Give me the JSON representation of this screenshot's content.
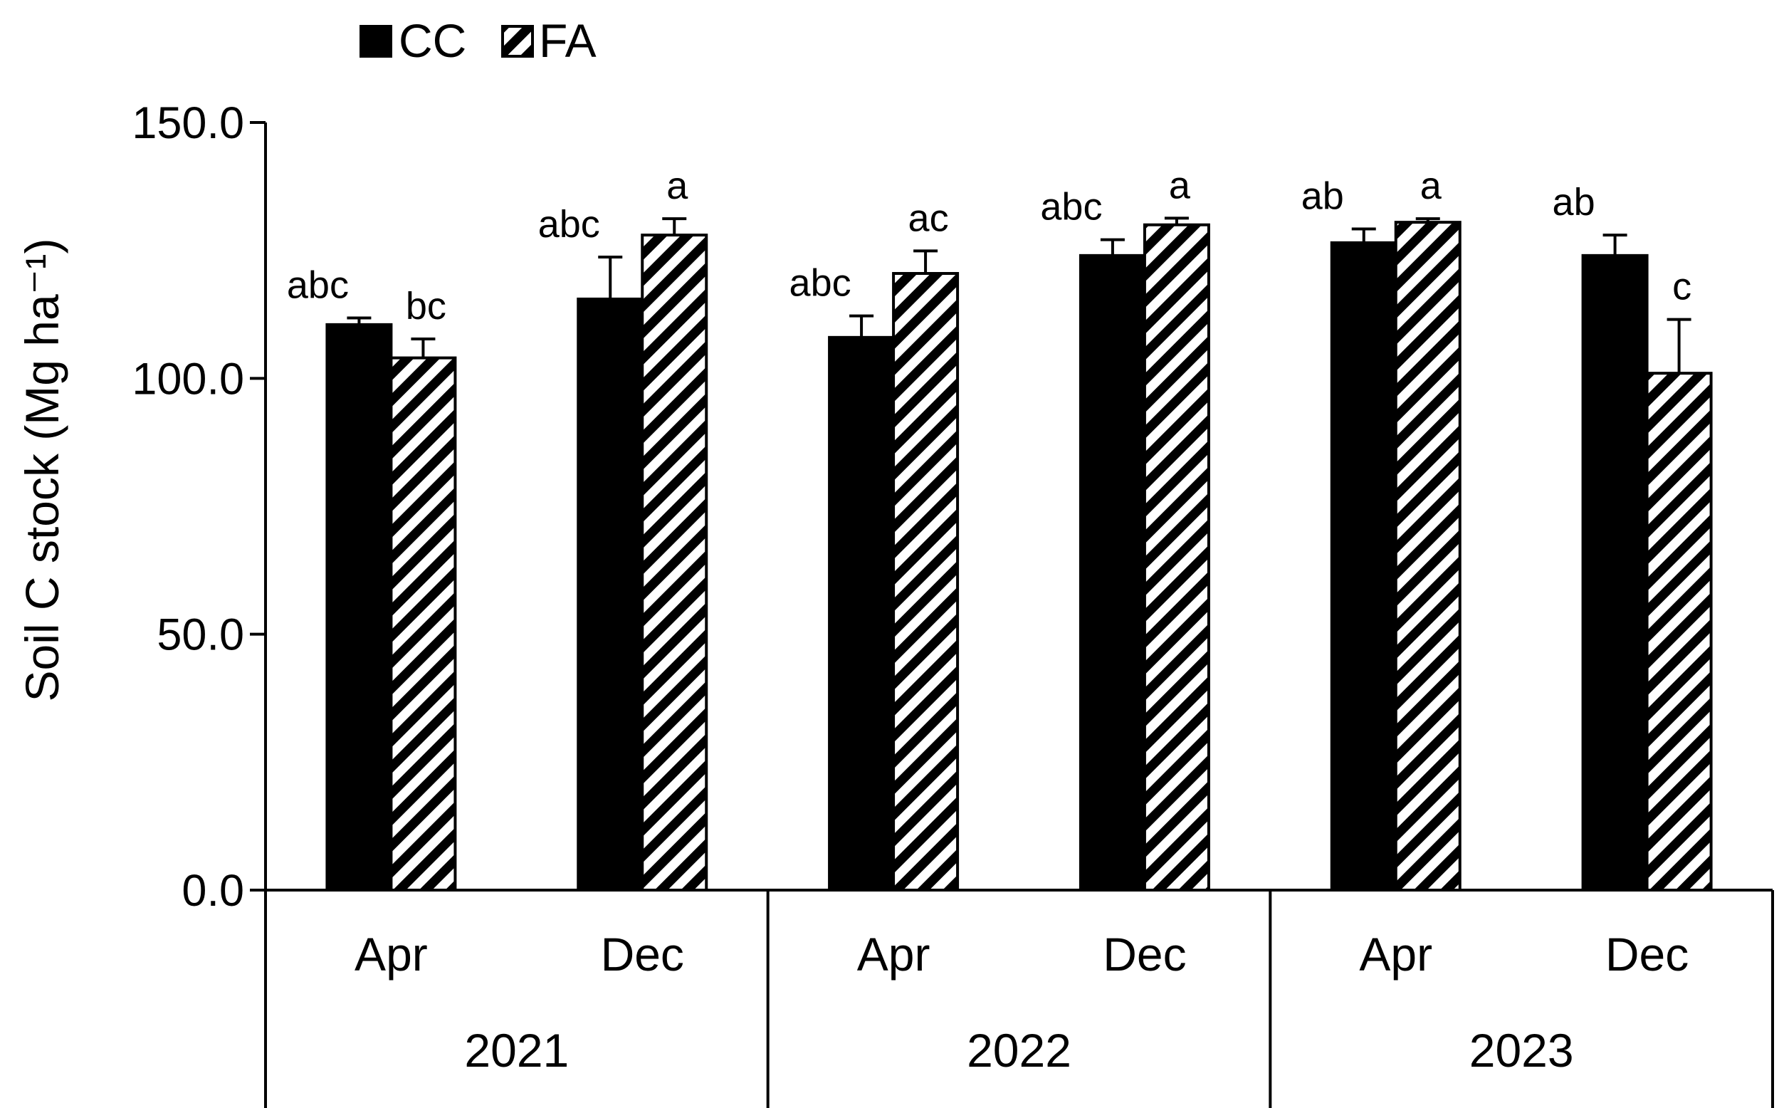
{
  "chart_data": {
    "type": "bar",
    "ylabel": "Soil C stock (Mg ha⁻¹)",
    "ylim": [
      0,
      150
    ],
    "yticks": [
      0,
      50,
      100,
      150
    ],
    "ytick_labels": [
      "0.0",
      "50.0",
      "100.0",
      "150.0"
    ],
    "groups": [
      "2021",
      "2022",
      "2023"
    ],
    "categories": [
      "Apr",
      "Dec",
      "Apr",
      "Dec",
      "Apr",
      "Dec"
    ],
    "series": [
      {
        "name": "CC",
        "fill": "solid",
        "values": [
          110.5,
          115.5,
          108,
          124,
          126.5,
          124
        ],
        "errors": [
          1.3,
          8.2,
          4.2,
          3.1,
          2.7,
          4.0
        ],
        "letters": [
          "abc",
          "abc",
          "abc",
          "abc",
          "ab",
          "ab"
        ]
      },
      {
        "name": "FA",
        "fill": "hatched",
        "values": [
          104,
          128,
          120.5,
          130,
          130.5,
          101
        ],
        "errors": [
          3.7,
          3.2,
          4.4,
          1.3,
          0.7,
          10.5
        ],
        "letters": [
          "bc",
          "a",
          "ac",
          "a",
          "a",
          "c"
        ]
      }
    ],
    "grid": false,
    "legend": "top-left"
  },
  "colors": {
    "cc_fill": "#000000",
    "fa_stripe": "#000000",
    "fa_background": "#ffffff",
    "axis": "#000000"
  }
}
